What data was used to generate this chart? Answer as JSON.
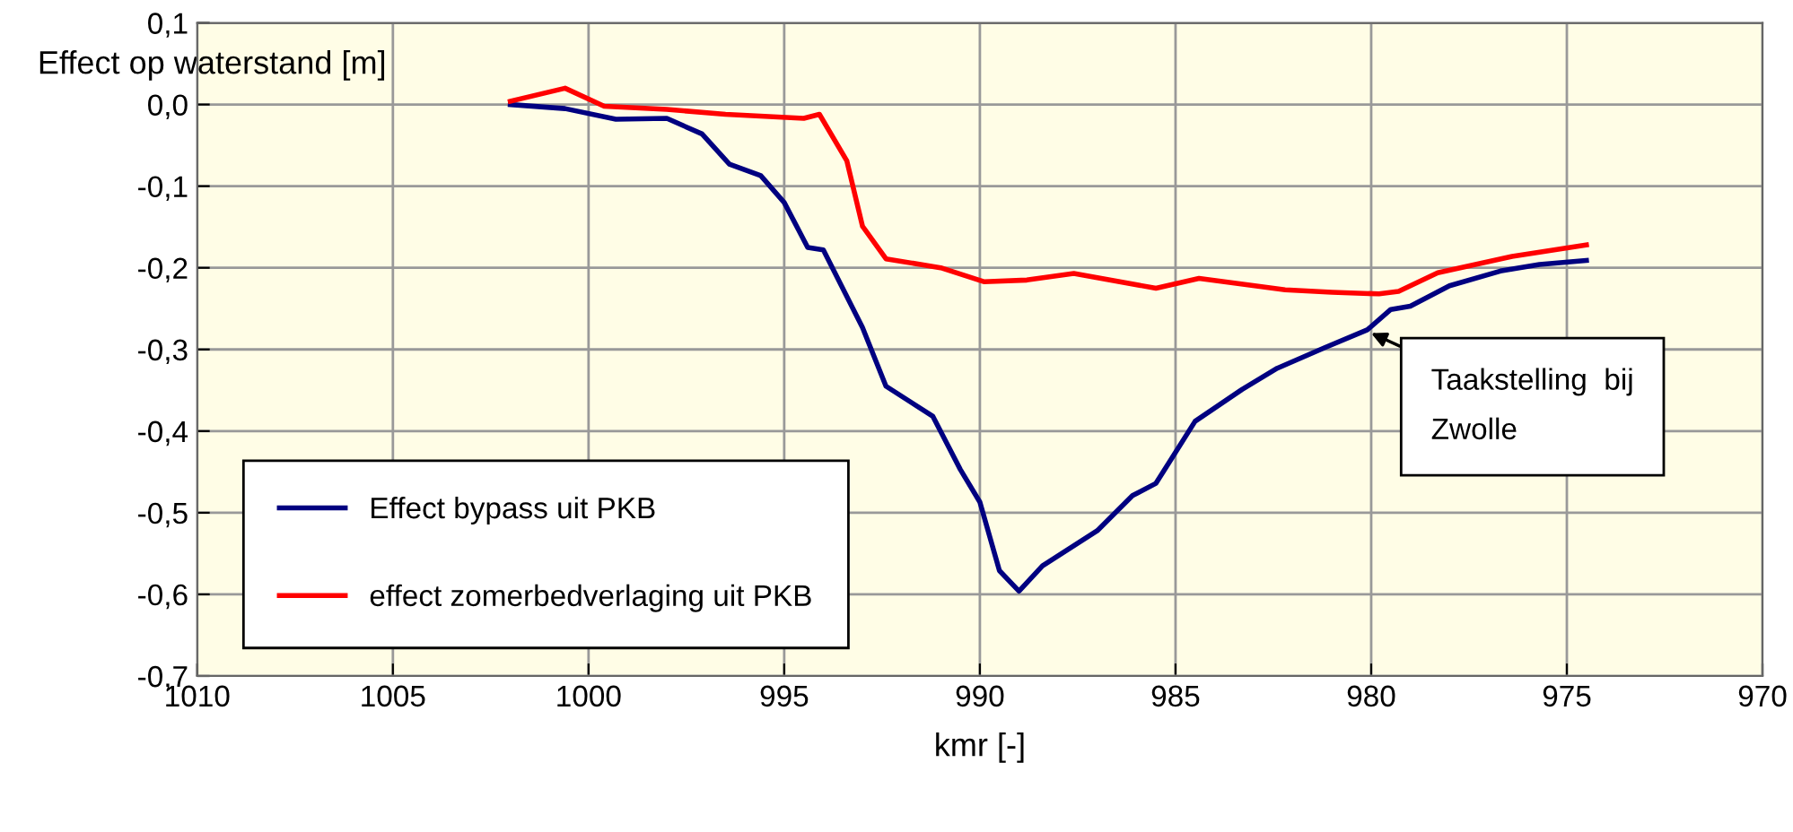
{
  "chart_data": {
    "type": "line",
    "xlabel": "kmr [-]",
    "ylabel": "Effect op waterstand [m]",
    "xlim": [
      1010,
      970
    ],
    "xticks": [
      1010,
      1005,
      1000,
      995,
      990,
      985,
      980,
      975,
      970
    ],
    "ylim": [
      -0.7,
      0.1
    ],
    "yticks": [
      {
        "value": 0.1,
        "label": "0,1"
      },
      {
        "value": 0.0,
        "label": "0,0"
      },
      {
        "value": -0.1,
        "label": "-0,1"
      },
      {
        "value": -0.2,
        "label": "-0,2"
      },
      {
        "value": -0.3,
        "label": "-0,3"
      },
      {
        "value": -0.4,
        "label": "-0,4"
      },
      {
        "value": -0.5,
        "label": "-0,5"
      },
      {
        "value": -0.6,
        "label": "-0,6"
      },
      {
        "value": -0.7,
        "label": "-0,7"
      }
    ],
    "grid": true,
    "legend": "bottom left",
    "marker": "none",
    "line_style": "solid",
    "series": [
      {
        "name": "Effect bypass uit PKB",
        "color": "#000080",
        "x": [
          1002.0,
          1000.6,
          999.3,
          998.0,
          997.1,
          996.4,
          995.6,
          995.0,
          994.4,
          994.0,
          993.0,
          992.4,
          991.2,
          990.5,
          990.0,
          989.5,
          989.0,
          988.4,
          987.0,
          986.1,
          985.5,
          984.5,
          983.3,
          982.4,
          981.2,
          980.1,
          979.5,
          979.0,
          978.0,
          976.7,
          975.7,
          974.5
        ],
        "values": [
          0.0,
          -0.005,
          -0.018,
          -0.017,
          -0.036,
          -0.073,
          -0.087,
          -0.12,
          -0.175,
          -0.178,
          -0.273,
          -0.345,
          -0.382,
          -0.447,
          -0.487,
          -0.571,
          -0.596,
          -0.565,
          -0.522,
          -0.479,
          -0.464,
          -0.388,
          -0.349,
          -0.323,
          -0.298,
          -0.276,
          -0.251,
          -0.247,
          -0.222,
          -0.204,
          -0.196,
          -0.191
        ]
      },
      {
        "name": "effect zomerbedverlaging uit PKB",
        "color": "#ff0000",
        "x": [
          1002.0,
          1000.6,
          999.6,
          998.0,
          996.5,
          994.5,
          994.1,
          993.4,
          993.0,
          992.4,
          991.0,
          989.9,
          988.8,
          987.6,
          985.5,
          984.4,
          982.2,
          981.0,
          979.8,
          979.3,
          978.3,
          976.4,
          974.5
        ],
        "values": [
          0.004,
          0.02,
          -0.002,
          -0.006,
          -0.012,
          -0.017,
          -0.012,
          -0.069,
          -0.149,
          -0.189,
          -0.2,
          -0.217,
          -0.215,
          -0.207,
          -0.225,
          -0.213,
          -0.227,
          -0.23,
          -0.232,
          -0.229,
          -0.206,
          -0.186,
          -0.172
        ]
      }
    ],
    "annotations": [
      {
        "text": "Taakstelling  bij\nZwolle",
        "x": 980,
        "y": -0.28
      }
    ]
  }
}
